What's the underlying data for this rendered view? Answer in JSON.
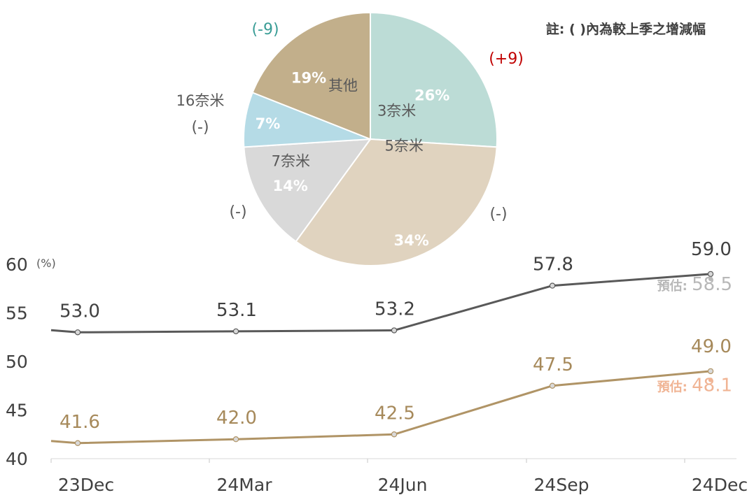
{
  "note": "註: ( )內為較上季之增減幅",
  "chart_data": [
    {
      "type": "pie",
      "slices": [
        {
          "label": "3奈米",
          "value": 26,
          "value_label": "26%",
          "change": "(+9)",
          "color": "#bcdcd6",
          "change_color": "#c00000"
        },
        {
          "label": "5奈米",
          "value": 34,
          "value_label": "34%",
          "change": "(-)",
          "color": "#e0d3bf",
          "change_color": "#595959"
        },
        {
          "label": "7奈米",
          "value": 14,
          "value_label": "14%",
          "change": "(-)",
          "color": "#d9d9d9",
          "change_color": "#595959"
        },
        {
          "label": "16奈米",
          "value": 7,
          "value_label": "7%",
          "change": "(-)",
          "color": "#b5dbe6",
          "change_color": "#595959"
        },
        {
          "label": "其他",
          "value": 19,
          "value_label": "19%",
          "change": "(-9)",
          "color": "#c2af8b",
          "change_color": "#3a9d96"
        }
      ]
    },
    {
      "type": "line",
      "ylabel": "(%)",
      "ylim": [
        40,
        60
      ],
      "yticks": [
        "40",
        "45",
        "50",
        "55",
        "60"
      ],
      "categories": [
        "23Dec",
        "24Mar",
        "24Jun",
        "24Sep",
        "24Dec"
      ],
      "series": [
        {
          "values": [
            53.0,
            53.1,
            53.2,
            57.8,
            59.0
          ],
          "labels": [
            "53.0",
            "53.1",
            "53.2",
            "57.8",
            "59.0"
          ],
          "color": "#595959",
          "label_color": "#404040",
          "estimate": {
            "prefix": "預估:",
            "value": 58.5,
            "label": "58.5",
            "color": "#b8b8b8"
          }
        },
        {
          "values": [
            41.6,
            42.0,
            42.5,
            47.5,
            49.0
          ],
          "labels": [
            "41.6",
            "42.0",
            "42.5",
            "47.5",
            "49.0"
          ],
          "color": "#b09466",
          "label_color": "#a6895a",
          "estimate": {
            "prefix": "預估:",
            "value": 48.1,
            "label": "48.1",
            "color": "#f0b494"
          }
        }
      ]
    }
  ]
}
